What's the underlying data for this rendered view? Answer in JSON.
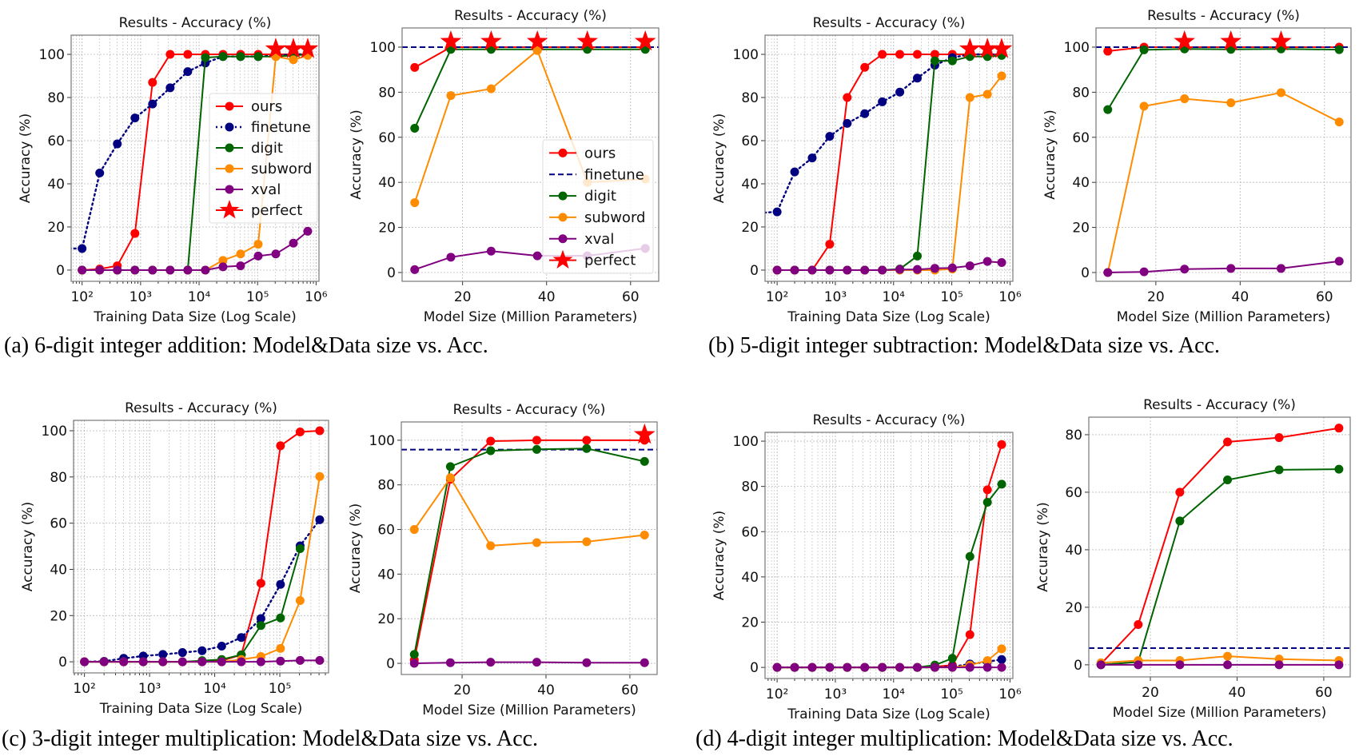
{
  "captions": {
    "a": "(a) 6-digit integer addition: Model&Data size vs. Acc.",
    "b": "(b) 5-digit integer subtraction: Model&Data size vs. Acc.",
    "c": "(c) 3-digit integer multiplication: Model&Data size vs. Acc.",
    "d": "(d) 4-digit integer multiplication: Model&Data size vs. Acc."
  },
  "colors": {
    "ours": "#ff0000",
    "finetune": "#000080",
    "digit": "#006400",
    "subword": "#ff8c00",
    "xval": "#800080",
    "perfect": "#ff0000"
  },
  "chart_data": [
    {
      "type": "line",
      "title": "Results - Accuracy (%)",
      "xlabel": "Training Data Size (Log Scale)",
      "ylabel": "Accuracy (%)",
      "xscale": "log",
      "xlim": [
        65,
        1120000
      ],
      "ylim": [
        -5.2,
        108.9
      ],
      "grid": "both",
      "xticks": [
        100,
        1000,
        10000,
        100000,
        1000000
      ],
      "xticklabels": [
        "10²",
        "10³",
        "10⁴",
        "10⁵",
        "10⁶"
      ],
      "yticks": [
        0,
        20,
        40,
        60,
        80,
        100
      ],
      "yticklabels": [
        "0",
        "20",
        "40",
        "60",
        "80",
        "100"
      ],
      "legend": "center right",
      "x": [
        50,
        100,
        200,
        400,
        800,
        1600,
        3200,
        6400,
        12800,
        25600,
        51200,
        102400,
        204800,
        409600,
        720000
      ],
      "series": [
        {
          "name": "ours",
          "style": "solid",
          "values": [
            null,
            0,
            0.5,
            2,
            17,
            87,
            100,
            100,
            100,
            100,
            100,
            100,
            100,
            100,
            100
          ]
        },
        {
          "name": "finetune",
          "style": "dotted",
          "values": [
            10,
            10,
            45,
            58.5,
            70.5,
            77,
            84.5,
            92,
            96,
            99,
            99,
            99,
            99.5,
            100,
            100
          ]
        },
        {
          "name": "digit",
          "style": "solid",
          "values": [
            null,
            0,
            0,
            0,
            0,
            0,
            0,
            0,
            98.5,
            99,
            99,
            99,
            99,
            99.5,
            100
          ]
        },
        {
          "name": "subword",
          "style": "solid",
          "values": [
            null,
            0,
            0,
            0,
            0,
            0,
            0,
            0,
            0,
            4.5,
            7.5,
            12,
            99,
            97.5,
            99.5
          ]
        },
        {
          "name": "xval",
          "style": "solid",
          "values": [
            null,
            0,
            0,
            0,
            0,
            0,
            0,
            0,
            0,
            1.5,
            2,
            6.5,
            7.5,
            12.5,
            18
          ]
        }
      ],
      "perfect": {
        "name": "perfect",
        "x": [
          204800,
          409600,
          720000
        ],
        "y": 102.5
      }
    },
    {
      "type": "line",
      "title": "Results - Accuracy (%)",
      "xlabel": "Model Size (Million Parameters)",
      "ylabel": "Accuracy (%)",
      "xscale": "linear",
      "xlim": [
        5.6,
        66.7
      ],
      "ylim": [
        -3.9,
        108.5
      ],
      "grid": "major",
      "xticks": [
        20,
        40,
        60
      ],
      "xticklabels": [
        "20",
        "40",
        "60"
      ],
      "yticks": [
        0,
        20,
        40,
        60,
        80,
        100
      ],
      "yticklabels": [
        "0",
        "20",
        "40",
        "60",
        "80",
        "100"
      ],
      "legend": "lower right",
      "x": [
        8.6,
        17.2,
        26.8,
        37.8,
        49.7,
        63.5
      ],
      "series": [
        {
          "name": "ours",
          "style": "solid",
          "values": [
            91,
            100,
            100,
            100,
            100,
            100
          ]
        },
        {
          "name": "finetune",
          "style": "dashed-baseline",
          "baseline": 100
        },
        {
          "name": "digit",
          "style": "solid",
          "values": [
            64,
            99,
            99,
            99,
            99,
            99
          ]
        },
        {
          "name": "subword",
          "style": "solid",
          "values": [
            31,
            78.5,
            81.5,
            98.5,
            40,
            41.5
          ]
        },
        {
          "name": "xval",
          "style": "solid",
          "values": [
            1.3,
            6.8,
            9.5,
            7.4,
            7.4,
            10.7
          ]
        }
      ],
      "perfect": {
        "name": "perfect",
        "x": [
          17.2,
          26.8,
          37.8,
          49.7,
          63.5
        ],
        "y": 102.5
      }
    },
    {
      "type": "line",
      "title": "Results - Accuracy (%)",
      "xlabel": "Training Data Size (Log Scale)",
      "ylabel": "Accuracy (%)",
      "xscale": "log",
      "xlim": [
        62,
        1120000
      ],
      "ylim": [
        -5.2,
        108.9
      ],
      "grid": "both",
      "xticks": [
        100,
        1000,
        10000,
        100000,
        1000000
      ],
      "xticklabels": [
        "10²",
        "10³",
        "10⁴",
        "10⁵",
        "10⁶"
      ],
      "yticks": [
        0,
        20,
        40,
        60,
        80,
        100
      ],
      "yticklabels": [
        "0",
        "20",
        "40",
        "60",
        "80",
        "100"
      ],
      "x": [
        50,
        100,
        200,
        400,
        800,
        1600,
        3200,
        6400,
        12800,
        25600,
        51200,
        102400,
        204800,
        409600,
        720000
      ],
      "series": [
        {
          "name": "ours",
          "style": "solid",
          "values": [
            null,
            0,
            0,
            0,
            12,
            80,
            94,
            100,
            100,
            100,
            100,
            100,
            100,
            100,
            100
          ]
        },
        {
          "name": "finetune",
          "style": "dotted",
          "values": [
            26.5,
            27,
            45.5,
            52,
            62,
            68,
            72.5,
            78,
            82.5,
            89,
            95,
            98.5,
            100,
            100,
            100
          ]
        },
        {
          "name": "digit",
          "style": "solid",
          "values": [
            null,
            0,
            0,
            0,
            0,
            0,
            0,
            0,
            0.5,
            6.5,
            97,
            97,
            99,
            99,
            99.5
          ]
        },
        {
          "name": "subword",
          "style": "solid",
          "values": [
            null,
            0,
            0,
            0,
            0,
            0,
            0,
            0,
            0,
            0,
            0,
            0.5,
            80,
            81.5,
            90
          ]
        },
        {
          "name": "xval",
          "style": "solid",
          "values": [
            null,
            0,
            0,
            0,
            0,
            0,
            0,
            0,
            0.3,
            0.3,
            0.8,
            1,
            2,
            4,
            3.5
          ]
        }
      ],
      "perfect": {
        "name": "perfect",
        "x": [
          204800,
          409600,
          720000
        ],
        "y": 102.5
      }
    },
    {
      "type": "line",
      "title": "Results - Accuracy (%)",
      "xlabel": "Model Size (Million Parameters)",
      "ylabel": "Accuracy (%)",
      "xscale": "linear",
      "xlim": [
        5.8,
        66.3
      ],
      "ylim": [
        -3.9,
        108.5
      ],
      "grid": "major",
      "xticks": [
        20,
        40,
        60
      ],
      "xticklabels": [
        "20",
        "40",
        "60"
      ],
      "yticks": [
        0,
        20,
        40,
        60,
        80,
        100
      ],
      "yticklabels": [
        "0",
        "20",
        "40",
        "60",
        "80",
        "100"
      ],
      "x": [
        8.6,
        17.2,
        26.8,
        37.8,
        49.7,
        63.5
      ],
      "series": [
        {
          "name": "ours",
          "style": "solid",
          "values": [
            98.2,
            100,
            100,
            100,
            100,
            100
          ]
        },
        {
          "name": "finetune",
          "style": "dashed-baseline",
          "baseline": 100
        },
        {
          "name": "digit",
          "style": "solid",
          "values": [
            72.3,
            98.8,
            99.2,
            99,
            99.2,
            98.9
          ]
        },
        {
          "name": "subword",
          "style": "solid",
          "values": [
            0,
            73.8,
            77.1,
            75.3,
            79.8,
            66.8
          ]
        },
        {
          "name": "xval",
          "style": "solid",
          "values": [
            0,
            0.3,
            1.5,
            1.8,
            1.8,
            5
          ]
        }
      ],
      "perfect": {
        "name": "perfect",
        "x": [
          26.8,
          37.8,
          49.7
        ],
        "y": 102.5
      }
    },
    {
      "type": "line",
      "title": "Results - Accuracy (%)",
      "xlabel": "Training Data Size (Log Scale)",
      "ylabel": "Accuracy (%)",
      "xscale": "log",
      "xlim": [
        68,
        560000
      ],
      "ylim": [
        -4.8,
        104.5
      ],
      "grid": "both",
      "xticks": [
        100,
        1000,
        10000,
        100000
      ],
      "xticklabels": [
        "10²",
        "10³",
        "10⁴",
        "10⁵"
      ],
      "yticks": [
        0,
        20,
        40,
        60,
        80,
        100
      ],
      "yticklabels": [
        "0",
        "20",
        "40",
        "60",
        "80",
        "100"
      ],
      "x": [
        100,
        200,
        400,
        800,
        1600,
        3200,
        6400,
        12800,
        25600,
        51200,
        102400,
        204800,
        409600
      ],
      "series": [
        {
          "name": "ours",
          "style": "solid",
          "values": [
            0,
            0,
            0,
            0,
            0,
            0,
            0,
            0.5,
            3,
            34,
            93.5,
            99.5,
            100
          ]
        },
        {
          "name": "finetune",
          "style": "dotted",
          "values": [
            0,
            0.2,
            1.5,
            2.5,
            3.2,
            4,
            4.8,
            6.8,
            10.5,
            18.7,
            33.5,
            50.2,
            61.5
          ]
        },
        {
          "name": "digit",
          "style": "solid",
          "values": [
            0,
            0,
            0,
            0,
            0,
            0,
            0.5,
            1,
            3,
            15.7,
            19,
            49,
            null
          ]
        },
        {
          "name": "subword",
          "style": "solid",
          "values": [
            0,
            0,
            0,
            0,
            0,
            0,
            0,
            0,
            1,
            2.3,
            5.8,
            26.5,
            80.2
          ]
        },
        {
          "name": "xval",
          "style": "solid",
          "values": [
            0,
            0,
            0,
            0,
            0,
            0,
            0,
            0,
            0,
            0,
            0.3,
            0.6,
            0.6
          ]
        }
      ]
    },
    {
      "type": "line",
      "title": "Results - Accuracy (%)",
      "xlabel": "Model Size (Million Parameters)",
      "ylabel": "Accuracy (%)",
      "xscale": "linear",
      "xlim": [
        5.5,
        66.5
      ],
      "ylim": [
        -5,
        108.2
      ],
      "grid": "major",
      "xticks": [
        20,
        40,
        60
      ],
      "xticklabels": [
        "20",
        "40",
        "60"
      ],
      "yticks": [
        0,
        20,
        40,
        60,
        80,
        100
      ],
      "yticklabels": [
        "0",
        "20",
        "40",
        "60",
        "80",
        "100"
      ],
      "x": [
        8.6,
        17.2,
        26.8,
        37.8,
        49.7,
        63.5
      ],
      "series": [
        {
          "name": "ours",
          "style": "solid",
          "values": [
            1.5,
            82.5,
            99.6,
            100,
            100,
            100
          ]
        },
        {
          "name": "finetune",
          "style": "dashed-baseline",
          "baseline": 95.8
        },
        {
          "name": "digit",
          "style": "solid",
          "values": [
            4,
            88.2,
            95.3,
            95.9,
            96.3,
            90.5
          ]
        },
        {
          "name": "subword",
          "style": "solid",
          "values": [
            60,
            83.2,
            52.7,
            54.1,
            54.5,
            57.5
          ]
        },
        {
          "name": "xval",
          "style": "solid",
          "values": [
            0,
            0.3,
            0.5,
            0.5,
            0.3,
            0.3
          ]
        }
      ],
      "perfect": {
        "name": "perfect",
        "x": [
          63.5
        ],
        "y": 102.5
      }
    },
    {
      "type": "line",
      "title": "Results - Accuracy (%)",
      "xlabel": "Training Data Size (Log Scale)",
      "ylabel": "Accuracy (%)",
      "xscale": "log",
      "xlim": [
        62,
        1120000
      ],
      "ylim": [
        -4.9,
        103.9
      ],
      "grid": "both",
      "xticks": [
        100,
        1000,
        10000,
        100000,
        1000000
      ],
      "xticklabels": [
        "10²",
        "10³",
        "10⁴",
        "10⁵",
        "10⁶"
      ],
      "yticks": [
        0,
        20,
        40,
        60,
        80,
        100
      ],
      "yticklabels": [
        "0",
        "20",
        "40",
        "60",
        "80",
        "100"
      ],
      "x": [
        100,
        200,
        400,
        800,
        1600,
        3200,
        6400,
        12800,
        25600,
        51200,
        102400,
        204800,
        409600,
        720000
      ],
      "series": [
        {
          "name": "ours",
          "style": "solid",
          "values": [
            0,
            0,
            0,
            0,
            0,
            0,
            0,
            0,
            0,
            0.3,
            1,
            14.5,
            78.5,
            98.5
          ]
        },
        {
          "name": "finetune",
          "style": "dotted",
          "values": [
            0,
            0,
            0,
            0,
            0,
            0,
            0,
            0,
            0,
            0,
            0.3,
            1.5,
            2.5,
            3.5
          ]
        },
        {
          "name": "digit",
          "style": "solid",
          "values": [
            0,
            0,
            0,
            0,
            0,
            0,
            0,
            0,
            0,
            1,
            4,
            49,
            73,
            81
          ]
        },
        {
          "name": "subword",
          "style": "solid",
          "values": [
            0,
            0,
            0,
            0,
            0,
            0,
            0,
            0,
            0,
            0,
            0,
            1,
            3,
            8.2
          ]
        },
        {
          "name": "xval",
          "style": "solid",
          "values": [
            0,
            0,
            0,
            0,
            0,
            0,
            0,
            0,
            0,
            0,
            0,
            0,
            0,
            0
          ]
        }
      ]
    },
    {
      "type": "line",
      "title": "Results - Accuracy (%)",
      "xlabel": "Model Size (Million Parameters)",
      "ylabel": "Accuracy (%)",
      "xscale": "linear",
      "xlim": [
        5.8,
        66.1
      ],
      "ylim": [
        -4.2,
        86.1
      ],
      "grid": "major",
      "xticks": [
        20,
        40,
        60
      ],
      "xticklabels": [
        "20",
        "40",
        "60"
      ],
      "yticks": [
        0,
        20,
        40,
        60,
        80
      ],
      "yticklabels": [
        "0",
        "20",
        "40",
        "60",
        "80"
      ],
      "x": [
        8.6,
        17.2,
        26.8,
        37.8,
        49.7,
        63.5
      ],
      "series": [
        {
          "name": "ours",
          "style": "solid",
          "values": [
            0.3,
            14,
            60,
            77.5,
            79,
            82.3
          ]
        },
        {
          "name": "finetune",
          "style": "dashed-baseline",
          "baseline": 5.8
        },
        {
          "name": "digit",
          "style": "solid",
          "values": [
            0,
            1,
            50,
            64.3,
            67.8,
            68
          ]
        },
        {
          "name": "subword",
          "style": "solid",
          "values": [
            0.7,
            1.5,
            1.5,
            3,
            2,
            1.5
          ]
        },
        {
          "name": "xval",
          "style": "solid",
          "values": [
            0,
            0,
            0,
            0,
            0,
            0
          ]
        }
      ]
    }
  ]
}
